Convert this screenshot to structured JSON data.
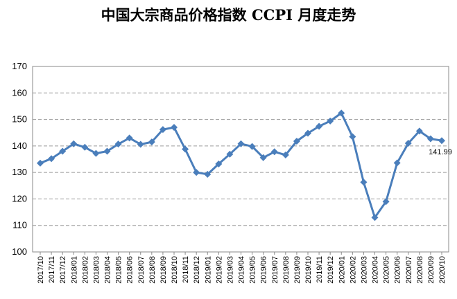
{
  "chart_data": {
    "type": "line",
    "title": "中国大宗商品价格指数 CCPI 月度走势",
    "xlabel": "",
    "ylabel": "",
    "ylim": [
      100,
      170
    ],
    "yticks": [
      100,
      110,
      120,
      130,
      140,
      150,
      160,
      170
    ],
    "grid": true,
    "line_color": "#4a7ebb",
    "categories": [
      "2017/10",
      "2017/11",
      "2017/12",
      "2018/01",
      "2018/02",
      "2018/03",
      "2018/04",
      "2018/05",
      "2018/06",
      "2018/07",
      "2018/08",
      "2018/09",
      "2018/10",
      "2018/11",
      "2018/12",
      "2019/01",
      "2019/02",
      "2019/03",
      "2019/04",
      "2019/05",
      "2019/06",
      "2019/07",
      "2019/08",
      "2019/09",
      "2019/10",
      "2019/11",
      "2019/12",
      "2020/01",
      "2020/02",
      "2020/03",
      "2020/04",
      "2020/05",
      "2020/06",
      "2020/07",
      "2020/08",
      "2020/09",
      "2020/10"
    ],
    "values": [
      133.5,
      135.2,
      138.0,
      140.8,
      139.5,
      137.2,
      138.0,
      140.7,
      143.0,
      140.6,
      141.5,
      146.2,
      147.0,
      138.8,
      130.0,
      129.3,
      133.2,
      136.9,
      140.8,
      139.8,
      135.6,
      137.8,
      136.6,
      141.8,
      144.8,
      147.4,
      149.4,
      152.4,
      143.5,
      126.3,
      113.0,
      119.0,
      133.6,
      141.0,
      145.6,
      142.7,
      141.99
    ],
    "annotations": [
      {
        "index": 36,
        "text": "141.99"
      }
    ]
  }
}
